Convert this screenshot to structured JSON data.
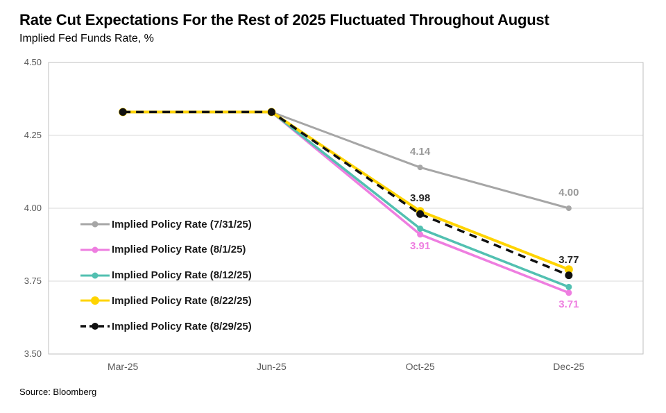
{
  "header": {
    "title": "Rate Cut Expectations For the Rest of 2025 Fluctuated Throughout August",
    "subtitle": "Implied Fed Funds Rate, %"
  },
  "source": "Source: Bloomberg",
  "colors": {
    "gray_series": "#a6a6a6",
    "pink_series": "#ee7ee0",
    "teal_series": "#52c0b1",
    "yellow_series": "#ffd400",
    "black_series": "#111111",
    "gridline": "#d9d9d9",
    "plot_border": "#bfbfbf",
    "tick_text": "#595959"
  },
  "chart_data": {
    "type": "line",
    "title": "Rate Cut Expectations For the Rest of 2025 Fluctuated Throughout August",
    "ylabel": "Implied Fed Funds Rate, %",
    "categories": [
      "Mar-25",
      "Jun-25",
      "Oct-25",
      "Dec-25"
    ],
    "ylim": [
      3.5,
      4.5
    ],
    "yticks": [
      4.5,
      4.25,
      4.0,
      3.75,
      3.5
    ],
    "grid": "horizontal",
    "legend_position": "inside-left",
    "series": [
      {
        "name": "Implied Policy Rate (7/31/25)",
        "color": "#a6a6a6",
        "style": "solid",
        "values": [
          4.33,
          4.33,
          4.14,
          4.0
        ],
        "point_labels": [
          null,
          null,
          "4.14",
          "4.00"
        ],
        "label_side": "above",
        "label_color": "#9a9a9a"
      },
      {
        "name": "Implied Policy Rate (8/1/25)",
        "color": "#ee7ee0",
        "style": "solid",
        "values": [
          4.33,
          4.33,
          3.91,
          3.71
        ],
        "point_labels": [
          null,
          null,
          "3.91",
          "3.71"
        ],
        "label_side": "below",
        "label_color": "#ee7ee0"
      },
      {
        "name": "Implied Policy Rate (8/12/25)",
        "color": "#52c0b1",
        "style": "solid",
        "values": [
          4.33,
          4.33,
          3.93,
          3.73
        ],
        "point_labels": [
          null,
          null,
          null,
          null
        ],
        "label_side": "above",
        "label_color": "#52c0b1"
      },
      {
        "name": "Implied Policy Rate (8/22/25)",
        "color": "#ffd400",
        "style": "solid",
        "values": [
          4.33,
          4.33,
          3.99,
          3.79
        ],
        "point_labels": [
          null,
          null,
          null,
          null
        ],
        "label_side": "above",
        "label_color": "#ffd400"
      },
      {
        "name": "Implied Policy Rate (8/29/25)",
        "color": "#111111",
        "style": "dashed",
        "values": [
          4.33,
          4.33,
          3.98,
          3.77
        ],
        "point_labels": [
          null,
          null,
          "3.98",
          "3.77"
        ],
        "label_side": "above",
        "label_color": "#262626"
      }
    ]
  }
}
